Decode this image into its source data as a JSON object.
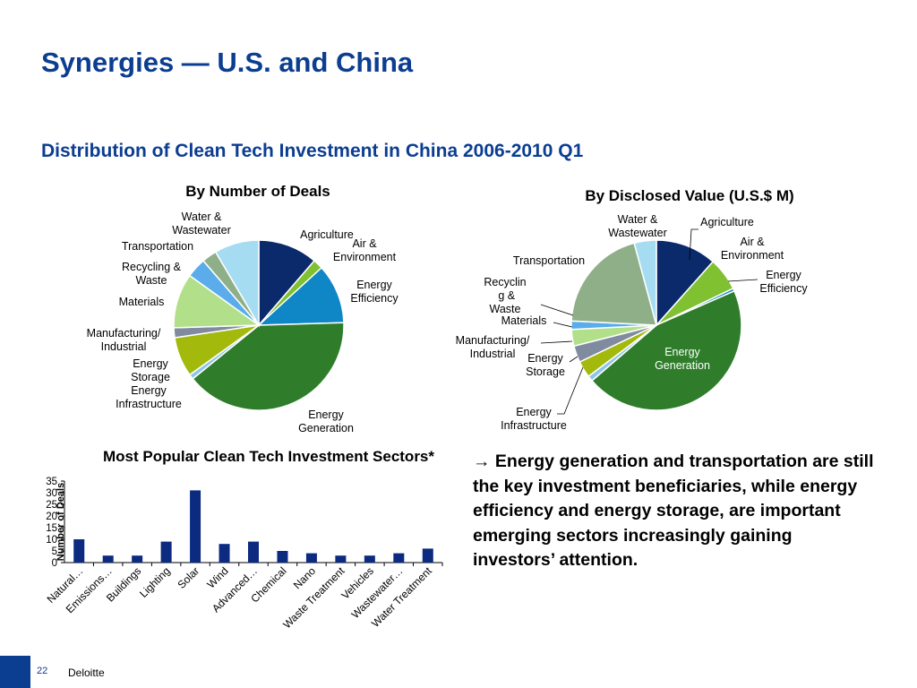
{
  "slide": {
    "title": "Synergies — U.S. and China",
    "section_title": "Distribution of Clean Tech Investment in China 2006-2010 Q1",
    "note": "→ Energy generation and transportation are still the key investment beneficiaries, while energy efficiency and energy storage, are important emerging sectors increasingly gaining investors’ attention.",
    "footer": {
      "page": "22",
      "brand": "Deloitte"
    }
  },
  "colors": {
    "Agriculture": "#0b2a6b",
    "Air & Environment": "#7fc131",
    "Energy Efficiency": "#0f86c6",
    "Energy Generation": "#2f7d2b",
    "Energy Infrastructure": "#8ec6e6",
    "Energy Storage": "#a3b90c",
    "Manufacturing/Industrial": "#808ba0",
    "Materials": "#b2e08a",
    "Recycling & Waste": "#5aacea",
    "Transportation": "#8faf89",
    "Water & Wastewater": "#a6dcf2",
    "bar": "#0b2a80",
    "title": "#0b3d91"
  },
  "chart_data": [
    {
      "type": "pie",
      "title": "By Number of Deals",
      "slices": [
        {
          "label": "Agriculture",
          "value": 12,
          "display": "Agriculture"
        },
        {
          "label": "Air & Environment",
          "value": 2,
          "display": "Air & Environment"
        },
        {
          "label": "Energy Efficiency",
          "value": 12,
          "display": "Energy Efficiency"
        },
        {
          "label": "Energy Generation",
          "value": 42,
          "display": "Energy Generation"
        },
        {
          "label": "Energy Infrastructure",
          "value": 1,
          "display": "Energy Infrastructure"
        },
        {
          "label": "Energy Storage",
          "value": 8,
          "display": "Energy Storage"
        },
        {
          "label": "Manufacturing/Industrial",
          "value": 2,
          "display": "Manufacturing/ Industrial"
        },
        {
          "label": "Materials",
          "value": 11,
          "display": "Materials"
        },
        {
          "label": "Recycling & Waste",
          "value": 4,
          "display": "Recycling & Waste"
        },
        {
          "label": "Transportation",
          "value": 3,
          "display": "Transportation"
        },
        {
          "label": "Water & Wastewater",
          "value": 9,
          "display": "Water & Wastewater"
        }
      ]
    },
    {
      "type": "pie",
      "title": "By Disclosed Value (U.S.$ M)",
      "slices": [
        {
          "label": "Agriculture",
          "value": 11,
          "display": "Agriculture"
        },
        {
          "label": "Air & Environment",
          "value": 6,
          "display": "Air & Environment"
        },
        {
          "label": "Energy Efficiency",
          "value": 0.5,
          "display": "Energy Efficiency"
        },
        {
          "label": "Energy Generation",
          "value": 43,
          "display": "Energy Generation"
        },
        {
          "label": "Energy Infrastructure",
          "value": 1,
          "display": "Energy Infrastructure"
        },
        {
          "label": "Energy Storage",
          "value": 3,
          "display": "Energy Storage"
        },
        {
          "label": "Manufacturing/Industrial",
          "value": 3,
          "display": "Manufacturing/ Industrial"
        },
        {
          "label": "Materials",
          "value": 3,
          "display": "Materials"
        },
        {
          "label": "Recycling & Waste",
          "value": 1.5,
          "display": "Recyclin g & Waste"
        },
        {
          "label": "Transportation",
          "value": 19,
          "display": "Transportation"
        },
        {
          "label": "Water & Wastewater",
          "value": 4,
          "display": "Water & Wastewater"
        }
      ]
    },
    {
      "type": "bar",
      "title": "Most Popular Clean Tech Investment Sectors*",
      "ylabel": "Number of Deals",
      "ylim": [
        0,
        35
      ],
      "yticks": [
        0,
        5,
        10,
        15,
        20,
        25,
        30,
        35
      ],
      "categories": [
        "Natural…",
        "Emissions…",
        "Buildings",
        "Lighting",
        "Solar",
        "Wind",
        "Advanced…",
        "Chemical",
        "Nano",
        "Waste Treatment",
        "Vehicles",
        "Wastewater…",
        "Water Treatment"
      ],
      "values": [
        10,
        3,
        3,
        9,
        31,
        8,
        9,
        5,
        4,
        3,
        3,
        4,
        6
      ],
      "grid": false,
      "legend": "none"
    }
  ]
}
